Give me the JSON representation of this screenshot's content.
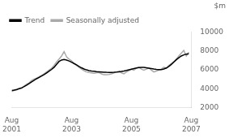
{
  "chart_data": {
    "type": "line",
    "ylabel": "$m",
    "x": [
      0,
      1,
      2,
      3,
      4,
      5,
      6,
      7,
      8,
      9,
      10,
      11,
      12,
      13,
      14,
      15,
      16,
      17,
      18,
      19,
      20,
      21,
      22,
      23,
      24,
      25,
      26,
      27,
      28,
      29,
      30,
      31,
      32,
      33,
      34,
      35,
      36,
      37,
      38,
      39,
      40,
      41,
      42,
      43,
      44,
      45,
      46,
      47,
      48,
      49,
      50,
      51,
      52,
      53,
      54,
      55,
      56,
      57,
      58,
      59,
      60,
      61,
      62,
      63,
      64,
      65,
      66,
      67,
      68,
      69,
      70,
      71
    ],
    "series": [
      {
        "name": "Trend",
        "color": "#000000",
        "values": [
          3800,
          3850,
          3920,
          4000,
          4100,
          4220,
          4380,
          4550,
          4730,
          4900,
          5060,
          5200,
          5350,
          5500,
          5680,
          5860,
          6050,
          6280,
          6600,
          6900,
          7050,
          7100,
          7050,
          6950,
          6820,
          6680,
          6530,
          6370,
          6220,
          6100,
          6000,
          5930,
          5880,
          5850,
          5820,
          5800,
          5780,
          5760,
          5740,
          5730,
          5730,
          5740,
          5760,
          5790,
          5830,
          5880,
          5940,
          6010,
          6080,
          6140,
          6200,
          6250,
          6270,
          6260,
          6230,
          6190,
          6140,
          6090,
          6050,
          6030,
          6040,
          6090,
          6200,
          6370,
          6580,
          6830,
          7080,
          7300,
          7480,
          7600,
          7680,
          7720
        ]
      },
      {
        "name": "Seasonally adjusted",
        "color": "#aaaaaa",
        "values": [
          3700,
          3820,
          3870,
          4050,
          4020,
          4280,
          4480,
          4620,
          4870,
          5020,
          5120,
          5280,
          5420,
          5580,
          5780,
          5980,
          6180,
          6480,
          6850,
          7150,
          7480,
          7950,
          7380,
          7150,
          6980,
          6680,
          6480,
          6280,
          6080,
          5920,
          5780,
          5720,
          5680,
          5640,
          5680,
          5720,
          5580,
          5480,
          5480,
          5520,
          5580,
          5680,
          5780,
          5870,
          5680,
          5580,
          5780,
          5920,
          6080,
          5980,
          6180,
          6280,
          6080,
          5980,
          6080,
          6200,
          5980,
          5780,
          5880,
          5980,
          6080,
          6280,
          6180,
          6480,
          6680,
          6880,
          7150,
          7480,
          7780,
          8080,
          7480,
          7880
        ]
      }
    ],
    "xlim": [
      0,
      72
    ],
    "xticks": [
      {
        "value": 0,
        "label": "Aug\n2001"
      },
      {
        "value": 24,
        "label": "Aug\n2003"
      },
      {
        "value": 48,
        "label": "Aug\n2005"
      },
      {
        "value": 72,
        "label": "Aug\n2007"
      }
    ],
    "ylim": [
      2000,
      10000
    ],
    "yticks": [
      2000,
      4000,
      6000,
      8000,
      10000
    ],
    "grid": false,
    "legend": "upper left"
  }
}
